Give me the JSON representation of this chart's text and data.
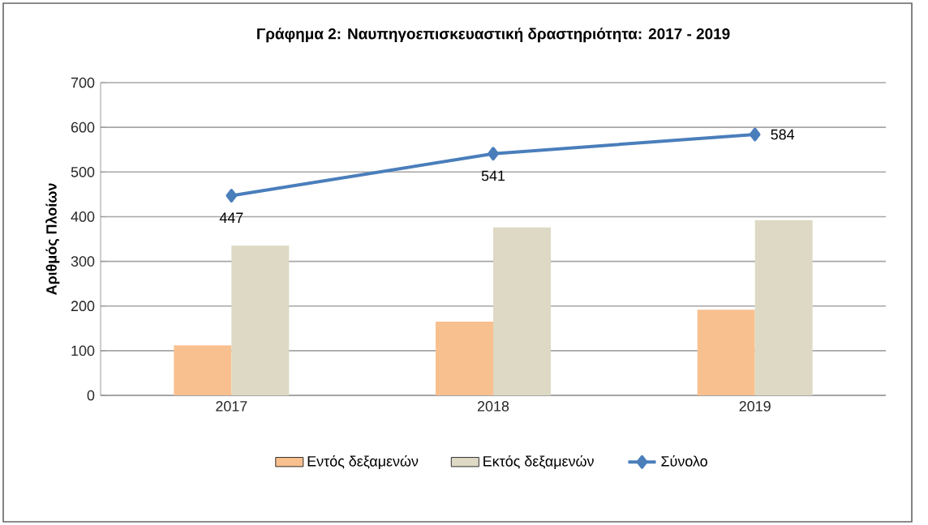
{
  "chart_data": {
    "type": "bar",
    "title": "Γράφημα 2: Ναυπηγοεπισκευαστική δραστηριότητα: 2017 - 2019",
    "ylabel": "Αριθμός Πλοίων",
    "categories": [
      "2017",
      "2018",
      "2019"
    ],
    "series": [
      {
        "name": "Εντός δεξαμενών",
        "color": "#f9c08f",
        "values": [
          112,
          165,
          192
        ]
      },
      {
        "name": "Εκτός δεξαμενών",
        "color": "#ddd9c4",
        "values": [
          335,
          376,
          392
        ]
      },
      {
        "name": "Σύνολο",
        "type": "line",
        "color": "#4a7ebb",
        "values": [
          447,
          541,
          584
        ],
        "value_labels": [
          "447",
          "541",
          "584"
        ]
      }
    ],
    "ylim": [
      0,
      700
    ],
    "yticks": [
      0,
      100,
      200,
      300,
      400,
      500,
      600,
      700
    ],
    "grid": "y",
    "legend": "bottom",
    "marker": "diamond",
    "line_style": "solid"
  }
}
